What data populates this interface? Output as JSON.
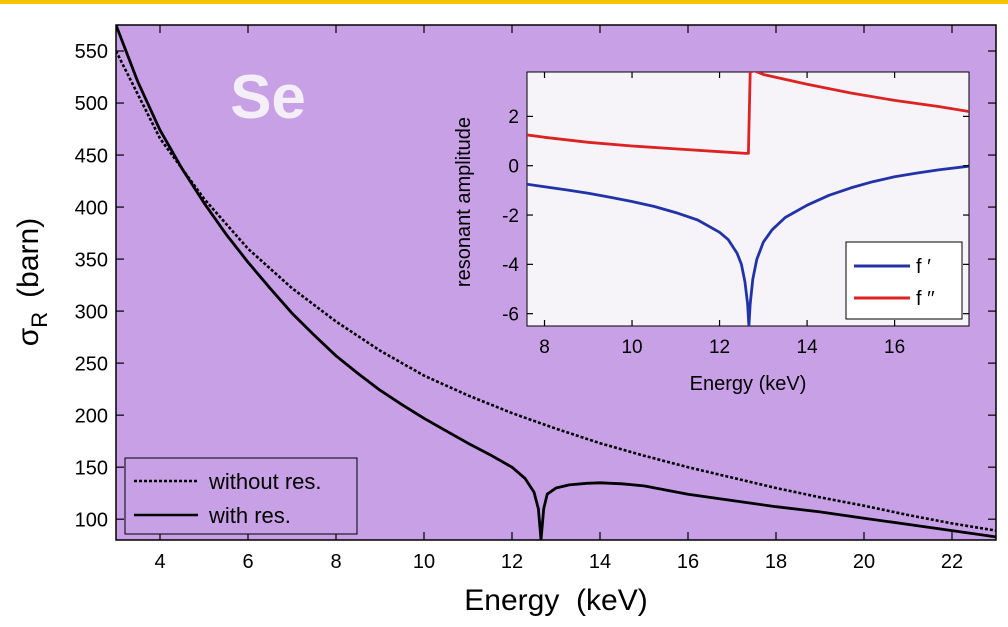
{
  "colors": {
    "top_bar": "#f5c400",
    "main_bg": "#c8a0e6",
    "inset_bg": "#f6f4f9",
    "f_prime": "#2233a8",
    "f_double_prime": "#dd2222",
    "curve": "#000000"
  },
  "chart_data": [
    {
      "type": "line",
      "title": "Se",
      "xlabel": "Energy  (keV)",
      "ylabel": "σR  (barn)",
      "ylabel_parts": {
        "symbol": "σ",
        "subscript": "R",
        "unit": "(barn)"
      },
      "xlim": [
        3,
        23
      ],
      "ylim": [
        80,
        575
      ],
      "xticks": [
        4,
        6,
        8,
        10,
        12,
        14,
        16,
        18,
        20,
        22
      ],
      "yticks": [
        100,
        150,
        200,
        250,
        300,
        350,
        400,
        450,
        500,
        550
      ],
      "legend": {
        "position": "bottom-left",
        "entries": [
          "without res.",
          "with res."
        ]
      },
      "grid": false,
      "series": [
        {
          "name": "without res.",
          "style": "dotted",
          "x": [
            3,
            4,
            5,
            6,
            7,
            8,
            9,
            10,
            11,
            12,
            13,
            14,
            15,
            16,
            17,
            18,
            19,
            20,
            21,
            22,
            23
          ],
          "y": [
            550,
            466,
            408,
            360,
            322,
            290,
            262,
            238,
            219,
            202,
            187,
            173,
            161,
            150,
            140,
            130,
            121,
            113,
            104,
            96,
            89
          ]
        },
        {
          "name": "with res.",
          "style": "solid",
          "x": [
            3,
            3.5,
            4,
            4.5,
            5,
            5.5,
            6,
            6.5,
            7,
            7.5,
            8,
            8.5,
            9,
            9.5,
            10,
            10.5,
            11,
            11.5,
            12,
            12.3,
            12.5,
            12.6,
            12.66,
            12.72,
            12.8,
            13.0,
            13.3,
            13.7,
            14,
            14.5,
            15,
            16,
            17,
            18,
            19,
            20,
            21,
            22,
            23
          ],
          "y": [
            575,
            520,
            474,
            437,
            404,
            374,
            347,
            322,
            298,
            277,
            257,
            240,
            224,
            210,
            197,
            185,
            173,
            162,
            150,
            139,
            126,
            110,
            80,
            110,
            124,
            130,
            133,
            134.5,
            135,
            134,
            132,
            124,
            118,
            112,
            107,
            101,
            95,
            89,
            83
          ]
        }
      ]
    },
    {
      "type": "line",
      "title": "",
      "xlabel": "Energy (keV)",
      "ylabel": "resonant amplitude",
      "xlim": [
        7.6,
        17.7
      ],
      "ylim": [
        -6.5,
        3.8
      ],
      "xticks": [
        8,
        10,
        12,
        14,
        16
      ],
      "yticks": [
        -6,
        -4,
        -2,
        0,
        2
      ],
      "legend": {
        "position": "bottom-right",
        "entries": [
          "f ′",
          "f ′′"
        ]
      },
      "grid": false,
      "series": [
        {
          "name": "f ′",
          "x": [
            7.6,
            8,
            8.5,
            9,
            9.5,
            10,
            10.5,
            11,
            11.5,
            12,
            12.2,
            12.4,
            12.5,
            12.58,
            12.64,
            12.67,
            12.7,
            12.76,
            12.85,
            13.0,
            13.2,
            13.5,
            14,
            14.5,
            15,
            15.5,
            16,
            16.5,
            17,
            17.7
          ],
          "y": [
            -0.75,
            -0.85,
            -0.98,
            -1.12,
            -1.28,
            -1.45,
            -1.65,
            -1.9,
            -2.2,
            -2.7,
            -3.0,
            -3.55,
            -4.0,
            -4.7,
            -5.6,
            -6.5,
            -5.6,
            -4.6,
            -3.8,
            -3.1,
            -2.6,
            -2.1,
            -1.6,
            -1.2,
            -0.9,
            -0.65,
            -0.45,
            -0.3,
            -0.17,
            -0.02
          ]
        },
        {
          "name": "f ′′",
          "x": [
            7.6,
            8,
            9,
            10,
            11,
            12,
            12.6,
            12.66,
            12.7,
            12.8,
            13,
            13.5,
            14,
            15,
            16,
            17,
            17.7
          ],
          "y": [
            1.25,
            1.15,
            0.95,
            0.8,
            0.68,
            0.57,
            0.5,
            0.5,
            3.8,
            3.85,
            3.7,
            3.5,
            3.3,
            2.95,
            2.65,
            2.4,
            2.2
          ]
        }
      ]
    }
  ]
}
